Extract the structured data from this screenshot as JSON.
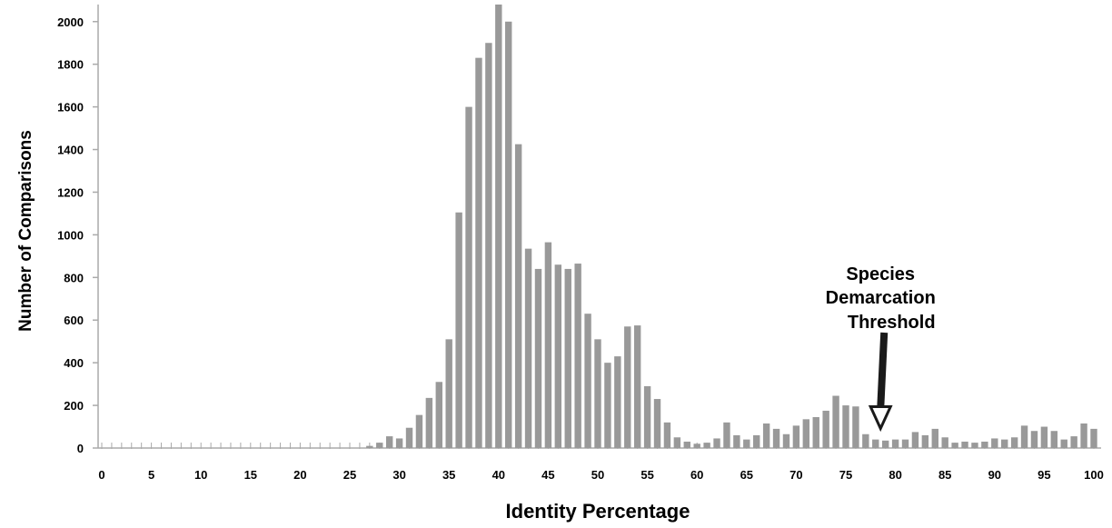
{
  "chart_data": {
    "type": "bar",
    "title": "",
    "xlabel": "Identity Percentage",
    "ylabel": "Number of Comparisons",
    "ylim": [
      0,
      2080
    ],
    "xlim": [
      0,
      100
    ],
    "y_ticks": [
      "0",
      "200",
      "400",
      "600",
      "800",
      "1000",
      "1200",
      "1400",
      "1600",
      "1800",
      "2000"
    ],
    "x_ticks": [
      "0",
      "5",
      "10",
      "15",
      "20",
      "25",
      "30",
      "35",
      "40",
      "45",
      "50",
      "55",
      "60",
      "65",
      "70",
      "75",
      "80",
      "85",
      "90",
      "95",
      "100"
    ],
    "bar_color": "#999999",
    "grid": false,
    "x": [
      0,
      1,
      2,
      3,
      4,
      5,
      6,
      7,
      8,
      9,
      10,
      11,
      12,
      13,
      14,
      15,
      16,
      17,
      18,
      19,
      20,
      21,
      22,
      23,
      24,
      25,
      26,
      27,
      28,
      29,
      30,
      31,
      32,
      33,
      34,
      35,
      36,
      37,
      38,
      39,
      40,
      41,
      42,
      43,
      44,
      45,
      46,
      47,
      48,
      49,
      50,
      51,
      52,
      53,
      54,
      55,
      56,
      57,
      58,
      59,
      60,
      61,
      62,
      63,
      64,
      65,
      66,
      67,
      68,
      69,
      70,
      71,
      72,
      73,
      74,
      75,
      76,
      77,
      78,
      79,
      80,
      81,
      82,
      83,
      84,
      85,
      86,
      87,
      88,
      89,
      90,
      91,
      92,
      93,
      94,
      95,
      96,
      97,
      98,
      99,
      100
    ],
    "values": [
      0,
      0,
      0,
      0,
      0,
      0,
      0,
      0,
      0,
      0,
      0,
      0,
      0,
      0,
      0,
      0,
      0,
      0,
      0,
      0,
      0,
      0,
      0,
      0,
      0,
      0,
      0,
      10,
      25,
      55,
      45,
      95,
      155,
      235,
      310,
      510,
      1105,
      1600,
      1830,
      1900,
      2080,
      2000,
      1425,
      935,
      840,
      965,
      860,
      840,
      865,
      630,
      510,
      400,
      430,
      570,
      575,
      290,
      230,
      120,
      50,
      30,
      20,
      25,
      45,
      120,
      60,
      40,
      60,
      115,
      90,
      65,
      105,
      135,
      145,
      175,
      245,
      200,
      195,
      65,
      40,
      35,
      40,
      40,
      75,
      60,
      90,
      50,
      25,
      30,
      25,
      30,
      45,
      40,
      50,
      105,
      80,
      100,
      80,
      40,
      55,
      115,
      90
    ],
    "annotation": {
      "lines": [
        "Species",
        "Demarcation",
        "Threshold"
      ],
      "x": 78.5,
      "arrow_tip_y": 100
    }
  }
}
